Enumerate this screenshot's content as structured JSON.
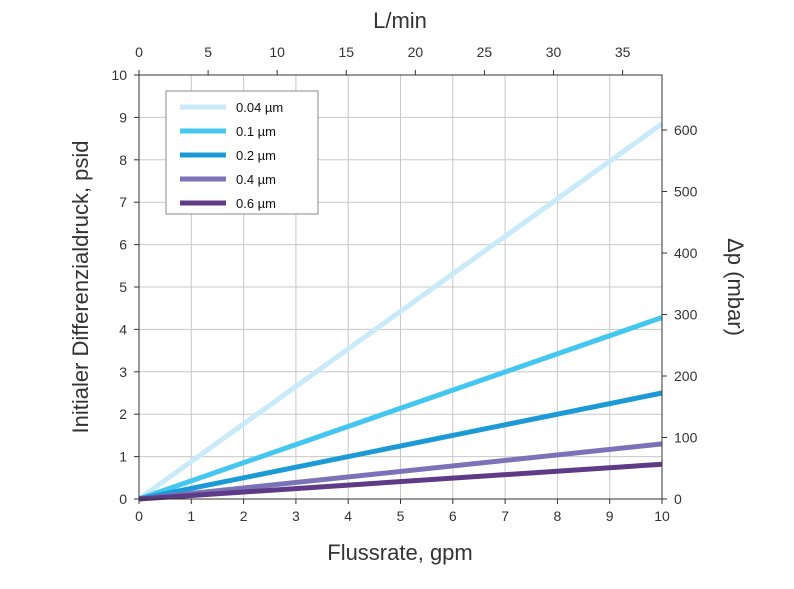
{
  "chart_data": {
    "type": "line",
    "title": "",
    "xlabel": "Flussrate, gpm",
    "ylabel": "Initialer Differenzialdruck, psid",
    "top_xlabel": "L/min",
    "right_ylabel": "Δp (mbar)",
    "xlim": [
      0,
      10
    ],
    "ylim": [
      0,
      10
    ],
    "top_xlim": [
      0,
      37.85
    ],
    "right_ylim": [
      0,
      689.5
    ],
    "x_ticks": [
      0,
      1,
      2,
      3,
      4,
      5,
      6,
      7,
      8,
      9,
      10
    ],
    "y_ticks": [
      0,
      1,
      2,
      3,
      4,
      5,
      6,
      7,
      8,
      9,
      10
    ],
    "top_ticks": [
      0,
      5,
      10,
      15,
      20,
      25,
      30,
      35
    ],
    "right_ticks": [
      0,
      100,
      200,
      300,
      400,
      500,
      600
    ],
    "grid": true,
    "legend_position": "top-left",
    "series": [
      {
        "name": "0.04 µm",
        "color": "#c9eaf9",
        "x": [
          0,
          10
        ],
        "values": [
          0,
          8.85
        ]
      },
      {
        "name": "0.1   µm",
        "color": "#43c6f0",
        "x": [
          0,
          10
        ],
        "values": [
          0,
          4.28
        ]
      },
      {
        "name": "0.2   µm",
        "color": "#1b9ad6",
        "x": [
          0,
          10
        ],
        "values": [
          0,
          2.5
        ]
      },
      {
        "name": "0.4   µm",
        "color": "#7b72b8",
        "x": [
          0,
          10
        ],
        "values": [
          0,
          1.3
        ]
      },
      {
        "name": "0.6   µm",
        "color": "#5e3a87",
        "x": [
          0,
          10
        ],
        "values": [
          0,
          0.82
        ]
      }
    ]
  }
}
